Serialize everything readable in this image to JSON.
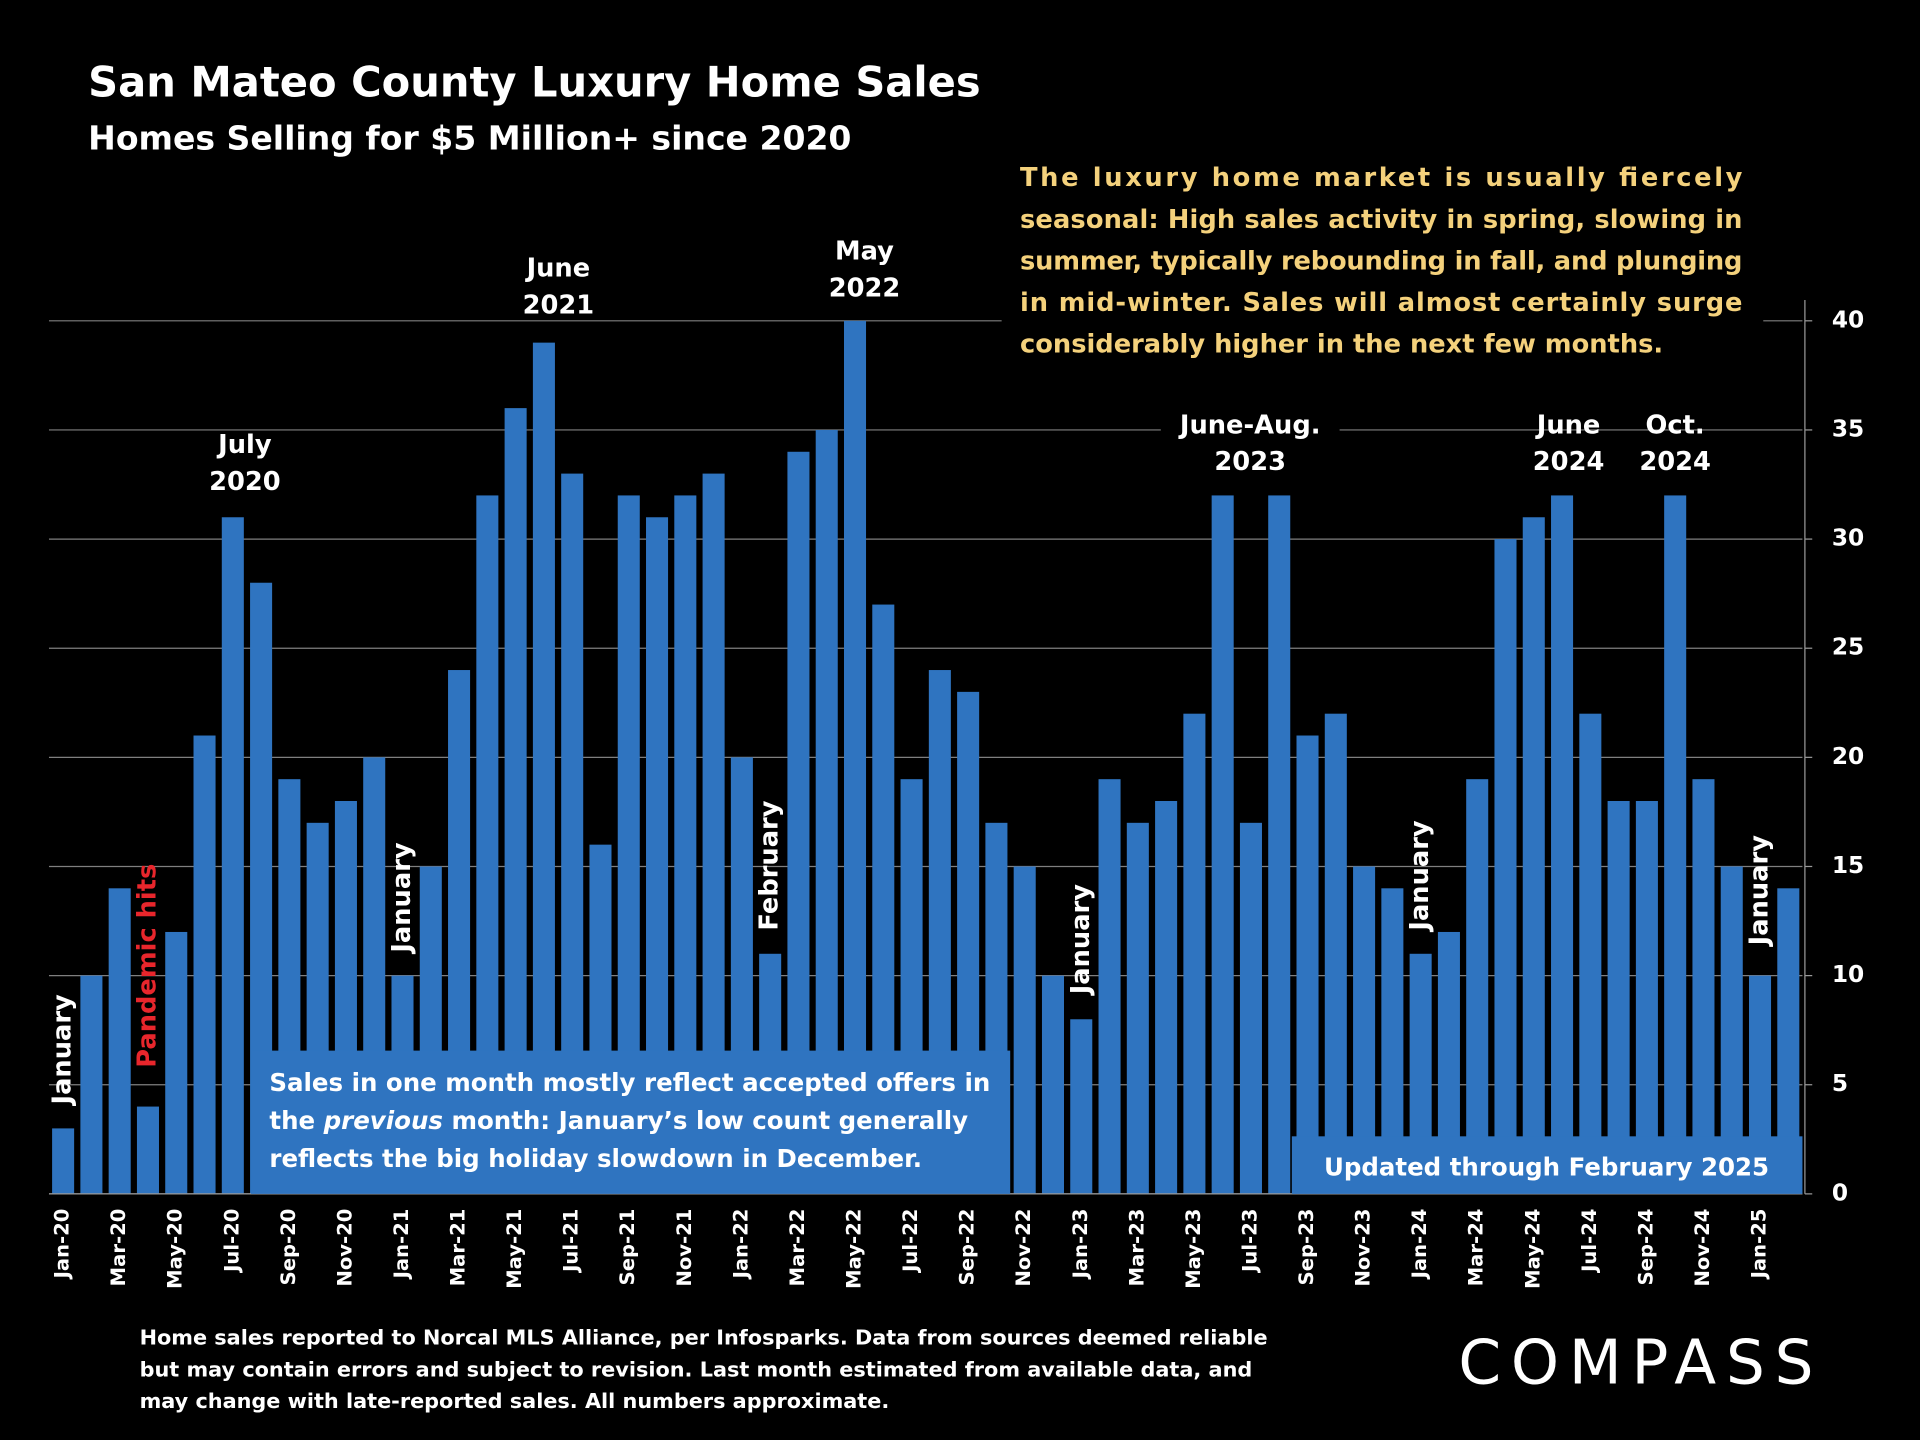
{
  "chart_data": {
    "type": "bar",
    "title": "San Mateo County Luxury Home Sales",
    "subtitle": "Homes Selling for $5 Million+ since 2020",
    "categories": [
      "Jan-20",
      null,
      "Mar-20",
      null,
      "May-20",
      null,
      "Jul-20",
      null,
      "Sep-20",
      null,
      "Nov-20",
      null,
      "Jan-21",
      null,
      "Mar-21",
      null,
      "May-21",
      null,
      "Jul-21",
      null,
      "Sep-21",
      null,
      "Nov-21",
      null,
      "Jan-22",
      null,
      "Mar-22",
      null,
      "May-22",
      null,
      "Jul-22",
      null,
      "Sep-22",
      null,
      "Nov-22",
      null,
      "Jan-23",
      null,
      "Mar-23",
      null,
      "May-23",
      null,
      "Jul-23",
      null,
      "Sep-23",
      null,
      "Nov-23",
      null,
      "Jan-24",
      null,
      "Mar-24",
      null,
      "May-24",
      null,
      "Jul-24",
      null,
      "Sep-24",
      null,
      "Nov-24",
      null,
      "Jan-25",
      null
    ],
    "values": [
      3,
      10,
      14,
      4,
      12,
      21,
      31,
      28,
      19,
      17,
      18,
      20,
      10,
      15,
      24,
      32,
      36,
      39,
      33,
      16,
      32,
      31,
      32,
      33,
      20,
      11,
      34,
      35,
      40,
      27,
      19,
      24,
      23,
      17,
      15,
      10,
      8,
      19,
      17,
      18,
      22,
      32,
      17,
      32,
      21,
      22,
      15,
      14,
      11,
      12,
      19,
      30,
      31,
      32,
      22,
      18,
      18,
      32,
      19,
      15,
      10,
      14
    ],
    "color": "#2f74c0",
    "ylim": [
      0,
      40
    ],
    "yticks": [
      0,
      5,
      10,
      15,
      20,
      25,
      30,
      35,
      40
    ],
    "grid": true,
    "annotations": [
      [
        "January"
      ],
      [
        "Pandemic hits"
      ],
      [
        "July",
        "2020"
      ],
      [
        "January"
      ],
      [
        "June",
        "2021"
      ],
      [
        "February"
      ],
      [
        "May",
        "2022"
      ],
      [
        "January"
      ],
      [
        "June-Aug.",
        "2023"
      ],
      [
        "January"
      ],
      [
        "June",
        "2024"
      ],
      [
        "Oct.",
        "2024"
      ],
      [
        "January"
      ]
    ],
    "commentary": [
      "The luxury home market is usually fiercely",
      "seasonal:  High sales activity in spring, slowing in",
      "summer, typically rebounding in fall, and plunging",
      "in mid-winter. Sales will almost certainly surge",
      "considerably higher in the next few months."
    ],
    "note": [
      [
        "Sales in one month mostly reflect accepted offers in"
      ],
      [
        "the",
        "previous",
        "month:  January’s low count generally"
      ],
      [
        "reflects the big holiday slowdown in December."
      ]
    ],
    "updated": "Updated through February 2025",
    "footnote": [
      "Home sales reported to Norcal MLS Alliance, per Infosparks. Data from sources deemed reliable",
      "but may contain errors and subject to revision.  Last month estimated from available data, and",
      "may change with late-reported sales. All numbers approximate."
    ],
    "brand": "COMPASS"
  }
}
